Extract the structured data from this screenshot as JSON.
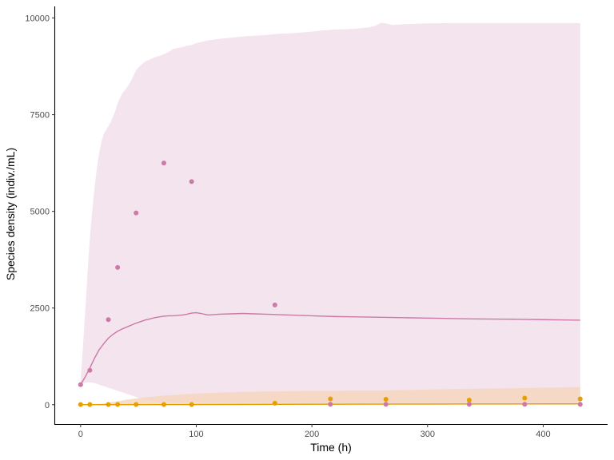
{
  "chart_data": {
    "type": "line",
    "title": "",
    "xlabel": "Time (h)",
    "ylabel": "Species density (indiv./mL)",
    "xlim": [
      -22,
      455
    ],
    "ylim": [
      -500,
      10300
    ],
    "x_ticks": [
      0,
      100,
      200,
      300,
      400
    ],
    "y_ticks": [
      0,
      2500,
      5000,
      7500,
      10000
    ],
    "x_tick_labels": [
      "0",
      "100",
      "200",
      "300",
      "400"
    ],
    "y_tick_labels": [
      "0",
      "2500",
      "5000",
      "7500",
      "10000"
    ],
    "grid": false,
    "legend": "none",
    "series": [
      {
        "color": "#cc79a7",
        "band_color": "#f3e4ee",
        "line": {
          "x": [
            0,
            4,
            8,
            12,
            16,
            20,
            24,
            28,
            32,
            36,
            40,
            44,
            48,
            52,
            56,
            60,
            64,
            68,
            72,
            76,
            80,
            84,
            88,
            92,
            96,
            100,
            104,
            110,
            120,
            130,
            140,
            150,
            160,
            170,
            180,
            190,
            200,
            220,
            240,
            260,
            280,
            300,
            320,
            340,
            360,
            380,
            400,
            420,
            432
          ],
          "y": [
            520,
            720,
            950,
            1200,
            1420,
            1580,
            1720,
            1820,
            1900,
            1960,
            2010,
            2060,
            2110,
            2150,
            2190,
            2220,
            2250,
            2270,
            2290,
            2300,
            2300,
            2310,
            2320,
            2340,
            2370,
            2380,
            2360,
            2320,
            2340,
            2350,
            2360,
            2350,
            2340,
            2330,
            2320,
            2310,
            2300,
            2280,
            2270,
            2260,
            2250,
            2240,
            2230,
            2220,
            2215,
            2210,
            2200,
            2190,
            2185
          ]
        },
        "band": {
          "x": [
            0,
            2,
            4,
            6,
            8,
            10,
            12,
            14,
            16,
            18,
            20,
            22,
            24,
            26,
            28,
            30,
            32,
            36,
            40,
            44,
            48,
            52,
            56,
            60,
            64,
            68,
            72,
            76,
            80,
            84,
            88,
            92,
            96,
            100,
            110,
            120,
            130,
            140,
            150,
            160,
            170,
            180,
            190,
            200,
            210,
            220,
            230,
            240,
            250,
            255,
            260,
            265,
            270,
            280,
            300,
            320,
            340,
            360,
            380,
            400,
            420,
            432
          ],
          "lower": [
            500,
            550,
            570,
            580,
            580,
            570,
            560,
            540,
            520,
            500,
            480,
            460,
            440,
            420,
            400,
            380,
            360,
            320,
            280,
            240,
            200,
            160,
            130,
            110,
            95,
            85,
            80,
            75,
            72,
            70,
            68,
            66,
            65,
            64,
            63,
            62,
            62,
            61,
            61,
            60,
            60,
            60,
            60,
            60,
            60,
            60,
            60,
            60,
            60,
            60,
            60,
            60,
            60,
            60,
            60,
            60,
            60,
            60,
            60,
            60,
            60,
            60
          ],
          "upper": [
            600,
            1500,
            2400,
            3400,
            4300,
            5000,
            5600,
            6100,
            6500,
            6800,
            7000,
            7100,
            7200,
            7300,
            7450,
            7600,
            7800,
            8050,
            8200,
            8400,
            8650,
            8780,
            8880,
            8930,
            8980,
            9020,
            9060,
            9120,
            9200,
            9220,
            9250,
            9280,
            9300,
            9350,
            9420,
            9460,
            9490,
            9520,
            9540,
            9560,
            9590,
            9600,
            9620,
            9650,
            9680,
            9700,
            9710,
            9730,
            9760,
            9800,
            9880,
            9850,
            9820,
            9840,
            9860,
            9870,
            9870,
            9870,
            9870,
            9870,
            9870,
            9870
          ]
        },
        "points": {
          "x": [
            0,
            8,
            24,
            32,
            48,
            72,
            96,
            168,
            216,
            264,
            336,
            384,
            432
          ],
          "y": [
            520,
            890,
            2200,
            3550,
            4960,
            6250,
            5770,
            2580,
            10,
            10,
            10,
            10,
            10
          ]
        }
      },
      {
        "color": "#e69f00",
        "band_color": "#f6d6bf",
        "line": {
          "x": [
            0,
            50,
            100,
            150,
            200,
            250,
            300,
            350,
            400,
            432
          ],
          "y": [
            2,
            3,
            5,
            8,
            12,
            15,
            18,
            20,
            22,
            23
          ]
        },
        "band": {
          "x": [
            0,
            10,
            20,
            30,
            40,
            50,
            60,
            70,
            80,
            90,
            100,
            120,
            140,
            160,
            180,
            200,
            220,
            240,
            260,
            280,
            300,
            320,
            340,
            360,
            380,
            400,
            420,
            432
          ],
          "lower": [
            0,
            0,
            0,
            0,
            0,
            0,
            0,
            0,
            0,
            0,
            0,
            0,
            0,
            0,
            0,
            0,
            0,
            0,
            0,
            0,
            0,
            0,
            0,
            0,
            0,
            0,
            0,
            0
          ],
          "upper": [
            5,
            10,
            30,
            80,
            130,
            170,
            200,
            230,
            250,
            270,
            290,
            310,
            330,
            340,
            350,
            360,
            360,
            370,
            370,
            380,
            390,
            400,
            410,
            420,
            430,
            440,
            450,
            460
          ]
        },
        "points": {
          "x": [
            0,
            8,
            24,
            32,
            48,
            72,
            96,
            168,
            216,
            264,
            336,
            384,
            432
          ],
          "y": [
            5,
            5,
            5,
            5,
            5,
            5,
            5,
            40,
            150,
            140,
            120,
            170,
            150
          ]
        }
      }
    ]
  }
}
